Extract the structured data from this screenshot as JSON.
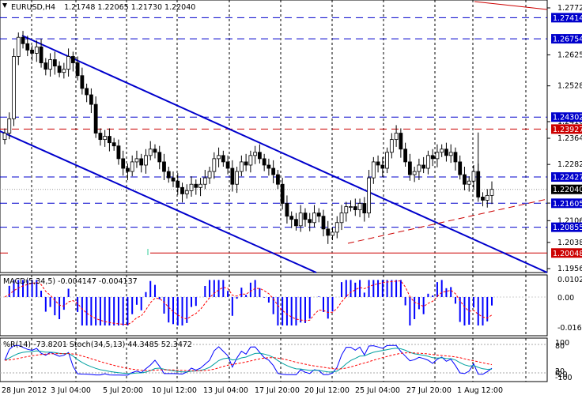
{
  "header": {
    "symbol_timeframe": "EURUSD,H4",
    "ohlc": "1.21748 1.22065 1.21730 1.22040"
  },
  "colors": {
    "candles": "#000000",
    "channel": "#0000cc",
    "dashed_blue": "#0000cc",
    "dashed_red": "#cc0000",
    "solid_red": "#cc0000",
    "macd_hist": "#0000ff",
    "macd_signal": "#ff0000",
    "wpr": "#0000ff",
    "stoch_main": "#00a0a0",
    "stoch_signal": "#ff0000",
    "grid": "#000000",
    "price_label_bg": "#0000cc",
    "price_label_red_bg": "#cc0000"
  },
  "price_axis": {
    "ticks": [
      "1.27720",
      "1.26250",
      "1.25280",
      "1.24160",
      "1.23640",
      "1.22820",
      "1.21610",
      "1.21060",
      "1.20380",
      "1.19560"
    ],
    "current_price": "1.22040",
    "labels": [
      {
        "text": "1.27414",
        "price": 1.27414,
        "style": "blue"
      },
      {
        "text": "1.26754",
        "price": 1.26754,
        "style": "blue"
      },
      {
        "text": "1.24302",
        "price": 1.24302,
        "style": "blue"
      },
      {
        "text": "1.23927",
        "price": 1.23927,
        "style": "red"
      },
      {
        "text": "1.22427",
        "price": 1.22427,
        "style": "blue"
      },
      {
        "text": "1.21605",
        "price": 1.21605,
        "style": "blue"
      },
      {
        "text": "1.20855",
        "price": 1.20855,
        "style": "blue"
      },
      {
        "text": "1.20048",
        "price": 1.20048,
        "style": "red"
      }
    ]
  },
  "time_axis": {
    "labels": [
      "28 Jun 2012",
      "3 Jul 04:00",
      "5 Jul 20:00",
      "10 Jul 12:00",
      "13 Jul 04:00",
      "17 Jul 20:00",
      "20 Jul 12:00",
      "25 Jul 04:00",
      "27 Jul 20:00",
      "1 Aug 12:00"
    ]
  },
  "macd": {
    "title": "MACD(5,34,5) -0.004147 -0.004137",
    "ticks": [
      "0.0102769",
      "0.00",
      "-0.0166127"
    ]
  },
  "stoch": {
    "title": "%R(14) -73.8201   Stoch(34,5,13) 44.3485 52.3472",
    "ticks": [
      "100",
      "80",
      "20",
      "0",
      "-20",
      "-100"
    ]
  },
  "chart_data": {
    "type": "candlestick",
    "symbol": "EURUSD",
    "timeframe": "H4",
    "last_bar": {
      "open": 1.21748,
      "high": 1.22065,
      "low": 1.2173,
      "close": 1.2204
    },
    "closes": [
      1.238,
      1.2425,
      1.262,
      1.268,
      1.266,
      1.264,
      1.263,
      1.265,
      1.26,
      1.258,
      1.261,
      1.259,
      1.257,
      1.258,
      1.262,
      1.26,
      1.256,
      1.252,
      1.25,
      1.247,
      1.238,
      1.236,
      1.237,
      1.235,
      1.234,
      1.23,
      1.227,
      1.226,
      1.229,
      1.23,
      1.228,
      1.231,
      1.233,
      1.232,
      1.229,
      1.226,
      1.224,
      1.223,
      1.221,
      1.219,
      1.22,
      1.222,
      1.221,
      1.222,
      1.224,
      1.226,
      1.23,
      1.231,
      1.229,
      1.227,
      1.222,
      1.226,
      1.229,
      1.228,
      1.231,
      1.232,
      1.23,
      1.228,
      1.227,
      1.225,
      1.222,
      1.216,
      1.212,
      1.211,
      1.209,
      1.213,
      1.211,
      1.21,
      1.213,
      1.212,
      1.208,
      1.206,
      1.207,
      1.21,
      1.213,
      1.215,
      1.215,
      1.214,
      1.216,
      1.213,
      1.224,
      1.229,
      1.228,
      1.227,
      1.232,
      1.236,
      1.238,
      1.233,
      1.229,
      1.225,
      1.226,
      1.228,
      1.227,
      1.231,
      1.23,
      1.232,
      1.233,
      1.231,
      1.232,
      1.229,
      1.225,
      1.222,
      1.223,
      1.226,
      1.218,
      1.217,
      1.2185,
      1.2204
    ],
    "horizontal_levels": [
      1.27414,
      1.26754,
      1.24302,
      1.23927,
      1.22427,
      1.21605,
      1.20855,
      1.20048
    ],
    "channel_lines": [
      "upper descending line",
      "lower descending line"
    ],
    "support_line": "red dashed rising line",
    "macd_ticks": [
      0.0102769,
      0,
      -0.0166127
    ],
    "stoch_levels": [
      80,
      20
    ]
  }
}
